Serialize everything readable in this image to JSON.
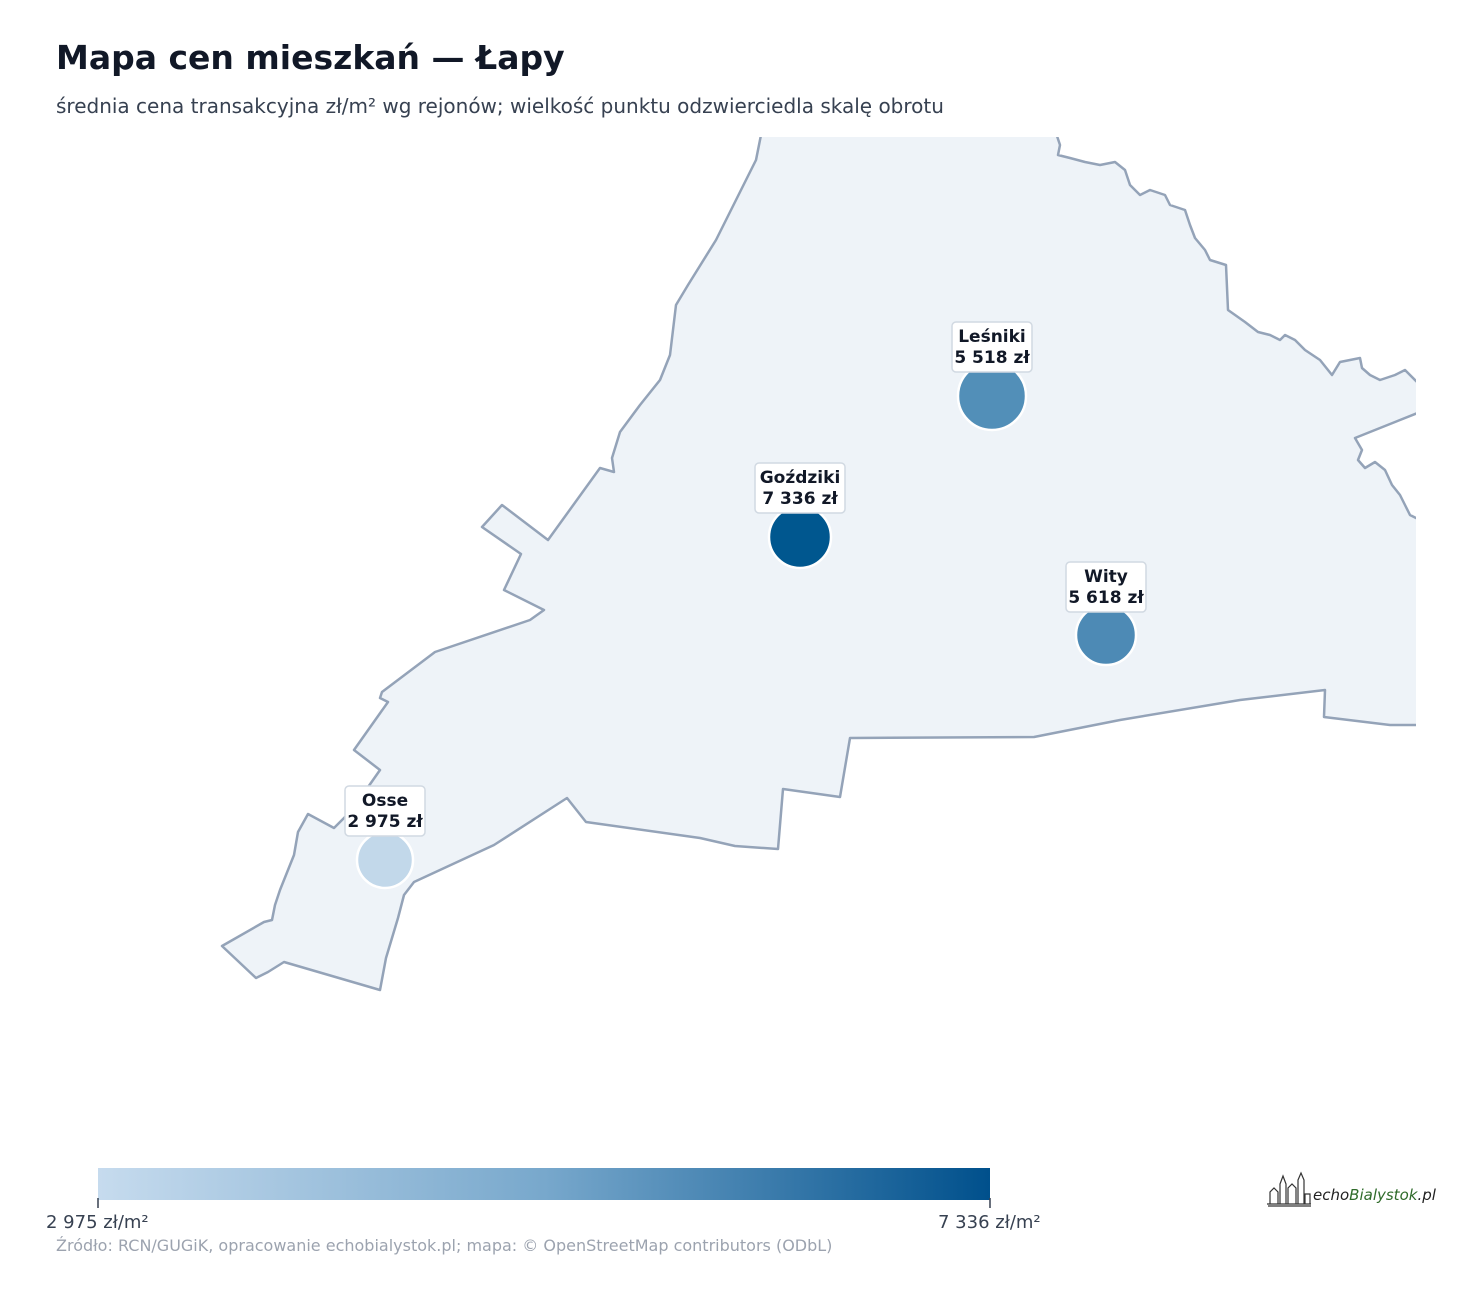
{
  "header": {
    "title": "Mapa cen mieszkań — Łapy",
    "subtitle": "średnia cena transakcyjna zł/m² wg rejonów; wielkość punktu odzwierciedla skalę obrotu"
  },
  "map": {
    "districts": [
      {
        "name": "Leśniki",
        "price_label": "5 518 zł",
        "price": 5518,
        "color": "#528fb8"
      },
      {
        "name": "Goździki",
        "price_label": "7 336 zł",
        "price": 7336,
        "color": "#00578f"
      },
      {
        "name": "Wity",
        "price_label": "5 618 zł",
        "price": 5618,
        "color": "#4d8ab5"
      },
      {
        "name": "Osse",
        "price_label": "2 975 zł",
        "price": 2975,
        "color": "#c2d8ea"
      }
    ],
    "fill_color": "#eef3f8",
    "border_color": "#94a3b8"
  },
  "legend": {
    "min_label": "2 975 zł/m²",
    "max_label": "7 336 zł/m²",
    "min_value": 2975,
    "max_value": 7336,
    "color_low": "#c6dbee",
    "color_high": "#00508c"
  },
  "footer": {
    "source": "Źródło: RCN/GUGiK, opracowanie echobialystok.pl; mapa: © OpenStreetMap contributors (ODbL)"
  },
  "logo": {
    "part1": "echo",
    "part2": "Bialystok",
    "part3": ".pl"
  }
}
